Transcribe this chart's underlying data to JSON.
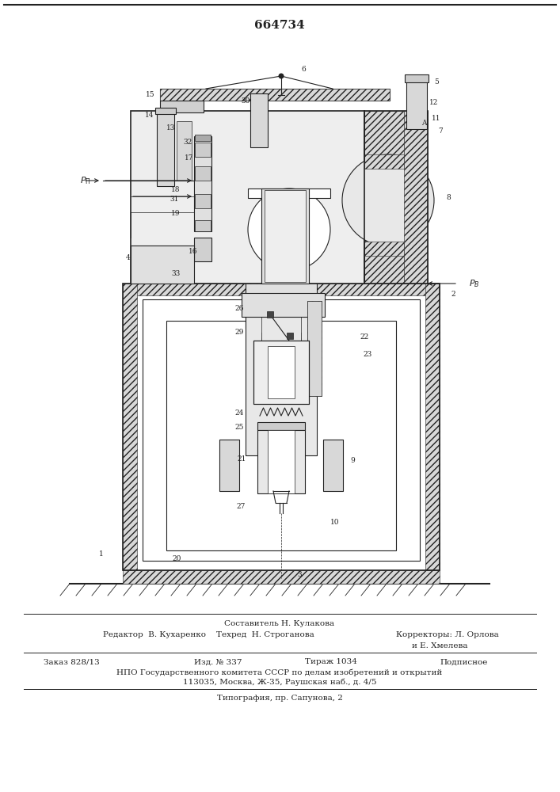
{
  "title": "664734",
  "bg_color": "#ffffff",
  "fig_width": 7.07,
  "fig_height": 10.0,
  "footer": {
    "composer": "Составитель Н. Кулакова",
    "editor": "Редактор  В. Кухаренко",
    "techred": "Техред  Н. Строганова",
    "corr1": "Корректоры: Л. Орлова",
    "corr2": "и Е. Хмелева",
    "order": "Заказ 828/13",
    "izd": "Изд. № 337",
    "tirazh": "Тираж 1034",
    "podp": "Подписное",
    "npo": "НПО Государственного комитета СССР по делам изобретений и открытий",
    "addr": "113035, Москва, Ж-35, Раушская наб., д. 4/5",
    "typo": "Типография, пр. Сапунова, 2"
  }
}
